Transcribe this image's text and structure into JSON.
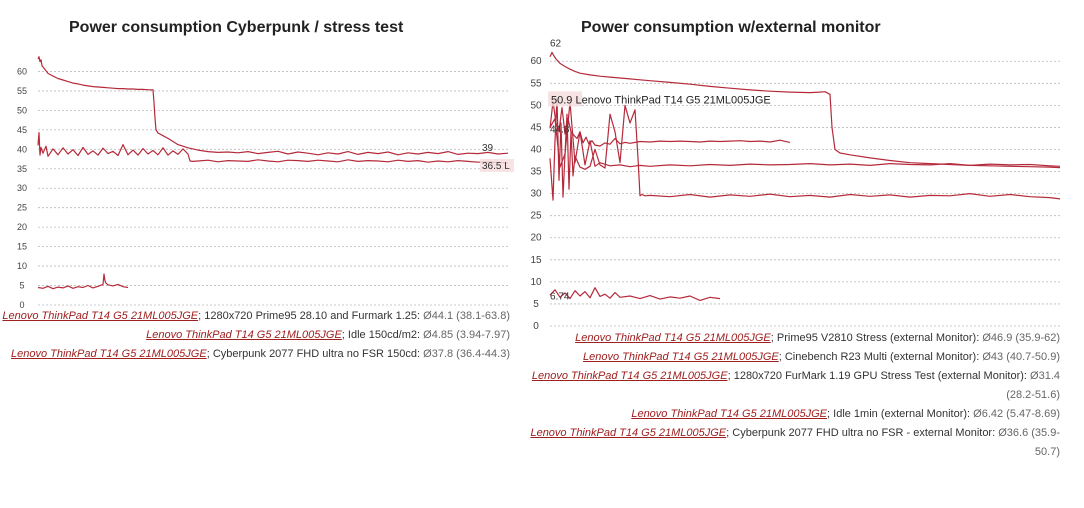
{
  "chart_data": [
    {
      "type": "line",
      "title": "Power consumption Cyberpunk / stress test",
      "xlabel": "",
      "ylabel": "",
      "ylim": [
        0,
        65
      ],
      "yticks": [
        0,
        5,
        10,
        15,
        20,
        25,
        30,
        35,
        40,
        45,
        50,
        55,
        60
      ],
      "grid": true,
      "legend_placement": "bottom",
      "end_labels": [
        "39",
        "36.5 L"
      ],
      "series": [
        {
          "name": "Lenovo ThinkPad T14 G5 21ML005JGE",
          "description": "1280x720 Prime95 28.10 and Furmark 1.25",
          "stat": "Ø44.1 (38.1-63.8)",
          "x": [
            0,
            1,
            2,
            3,
            4,
            6,
            8,
            10,
            15,
            20,
            25,
            30,
            35,
            40,
            45,
            50,
            55,
            60,
            65,
            70,
            75,
            80,
            85,
            90,
            95,
            100,
            105,
            110,
            115,
            116,
            117,
            118,
            120,
            125,
            130,
            135,
            140,
            150,
            160,
            170,
            180,
            190,
            200,
            210,
            220,
            230,
            240,
            250,
            260,
            270,
            280,
            290,
            300,
            310,
            320,
            330,
            340,
            350,
            360,
            370,
            380,
            390,
            400,
            410,
            420,
            430,
            440,
            450,
            460,
            470
          ],
          "values": [
            63.2,
            63.8,
            62.5,
            63.0,
            61.5,
            60.8,
            60.2,
            59.5,
            58.8,
            58.2,
            57.8,
            57.4,
            57.0,
            56.8,
            56.5,
            56.3,
            56.1,
            56.0,
            55.9,
            55.8,
            55.7,
            55.6,
            55.6,
            55.5,
            55.5,
            55.4,
            55.4,
            55.3,
            55.3,
            52.0,
            48.0,
            45.0,
            44.2,
            43.5,
            42.8,
            42.0,
            41.2,
            40.4,
            39.8,
            39.4,
            39.2,
            39.3,
            39.1,
            39.4,
            38.9,
            39.2,
            39.5,
            38.8,
            39.3,
            39.0,
            38.6,
            39.1,
            38.8,
            39.4,
            38.7,
            39.2,
            38.9,
            39.3,
            38.6,
            39.1,
            38.8,
            39.2,
            38.9,
            39.4,
            38.7,
            39.0,
            38.9,
            39.2,
            38.8,
            39.0
          ]
        },
        {
          "name": "Lenovo ThinkPad T14 G5 21ML005JGE",
          "description": "Idle 150cd/m2",
          "stat": "Ø4.85 (3.94-7.97)",
          "x": [
            0,
            5,
            10,
            15,
            20,
            25,
            30,
            35,
            40,
            45,
            50,
            55,
            60,
            65,
            66,
            67,
            68,
            70,
            75,
            80,
            85,
            90
          ],
          "values": [
            4.5,
            4.3,
            4.8,
            4.2,
            4.6,
            4.4,
            4.9,
            4.3,
            4.7,
            4.5,
            5.0,
            4.4,
            4.8,
            5.3,
            7.97,
            6.2,
            5.6,
            5.2,
            4.9,
            5.3,
            4.7,
            4.5
          ]
        },
        {
          "name": "Lenovo ThinkPad T14 G5 21ML005JGE",
          "description": "Cyberpunk 2077 FHD ultra no FSR 150cd",
          "stat": "Ø37.8 (36.4-44.3)",
          "x": [
            0,
            1,
            2,
            3,
            5,
            8,
            10,
            15,
            20,
            25,
            30,
            35,
            40,
            45,
            50,
            55,
            60,
            65,
            70,
            75,
            80,
            85,
            90,
            95,
            100,
            105,
            110,
            115,
            120,
            125,
            130,
            135,
            140,
            145,
            150,
            152,
            155,
            160,
            170,
            180,
            190,
            200,
            210,
            220,
            230,
            240,
            250,
            260,
            270,
            280,
            290,
            300,
            310,
            320,
            330,
            340,
            350,
            360,
            370,
            380,
            390,
            400,
            410,
            420,
            430,
            440,
            450,
            460,
            470
          ],
          "values": [
            41.0,
            44.3,
            38.5,
            40.5,
            39.0,
            40.8,
            38.2,
            40.1,
            38.6,
            40.4,
            38.8,
            39.9,
            38.4,
            40.5,
            38.7,
            39.6,
            38.5,
            40.3,
            38.9,
            39.5,
            38.4,
            41.2,
            38.6,
            39.8,
            38.5,
            40.2,
            38.8,
            39.7,
            38.6,
            40.4,
            38.5,
            39.6,
            38.7,
            40.1,
            38.8,
            37.0,
            36.9,
            37.0,
            37.2,
            36.8,
            37.1,
            37.0,
            36.9,
            37.3,
            37.0,
            36.8,
            37.2,
            37.1,
            36.9,
            37.2,
            37.0,
            36.8,
            37.3,
            36.9,
            37.1,
            37.0,
            36.8,
            37.2,
            36.9,
            37.1,
            36.7,
            37.0,
            36.8,
            37.1,
            36.9,
            36.7,
            36.8,
            36.6,
            36.5
          ]
        }
      ]
    },
    {
      "type": "line",
      "title": "Power consumption w/external monitor",
      "xlabel": "",
      "ylabel": "",
      "ylim": [
        0,
        63
      ],
      "yticks": [
        0,
        5,
        10,
        15,
        20,
        25,
        30,
        35,
        40,
        45,
        50,
        55,
        60
      ],
      "grid": true,
      "legend_placement": "bottom",
      "point_labels": [
        "62",
        "44.8",
        "6.74"
      ],
      "annotation": "50.9 Lenovo ThinkPad T14 G5 21ML005JGE",
      "series": [
        {
          "name": "Lenovo ThinkPad T14 G5 21ML005JGE",
          "description": "Prime95 V2810 Stress (external Monitor)",
          "stat": "Ø46.9 (35.9-62)",
          "x": [
            0,
            2,
            4,
            6,
            8,
            10,
            15,
            20,
            25,
            30,
            40,
            50,
            60,
            70,
            80,
            90,
            100,
            120,
            140,
            160,
            180,
            200,
            220,
            240,
            260,
            270,
            275,
            280,
            282,
            285,
            290,
            300,
            320,
            340,
            360,
            380,
            400,
            420,
            440,
            460,
            480,
            500,
            510
          ],
          "values": [
            61.0,
            62.0,
            61.2,
            60.5,
            60.0,
            59.5,
            58.8,
            58.2,
            57.7,
            57.3,
            56.9,
            56.6,
            56.4,
            56.2,
            56.0,
            55.8,
            55.6,
            55.2,
            54.8,
            54.3,
            53.9,
            53.5,
            53.2,
            53.0,
            52.9,
            53.0,
            53.1,
            52.5,
            45.0,
            40.0,
            39.2,
            38.8,
            38.1,
            37.5,
            37.0,
            36.8,
            36.6,
            36.4,
            36.3,
            36.2,
            36.1,
            36.0,
            35.9
          ]
        },
        {
          "name": "Lenovo ThinkPad T14 G5 21ML005JGE",
          "description": "Cinebench R23 Multi (external Monitor)",
          "stat": "Ø43 (40.7-50.9)",
          "x": [
            0,
            3,
            6,
            9,
            12,
            15,
            18,
            21,
            24,
            27,
            30,
            33,
            36,
            39,
            42,
            45,
            50,
            55,
            60,
            65,
            70,
            75,
            80,
            90,
            100,
            110,
            120,
            130,
            140,
            150,
            160,
            170,
            180,
            190,
            200,
            210,
            220,
            230,
            240
          ],
          "values": [
            44.8,
            50.9,
            46.0,
            44.2,
            49.5,
            43.5,
            47.0,
            44.0,
            43.2,
            42.5,
            44.0,
            41.5,
            42.8,
            41.2,
            42.0,
            41.0,
            40.8,
            41.5,
            41.2,
            42.5,
            41.3,
            41.6,
            41.4,
            41.8,
            41.7,
            41.9,
            41.8,
            41.9,
            41.8,
            41.7,
            41.9,
            41.8,
            41.9,
            42.0,
            41.8,
            41.9,
            41.7,
            42.1,
            41.6
          ]
        },
        {
          "name": "Lenovo ThinkPad T14 G5 21ML005JGE",
          "description": "1280x720 FurMark 1.19 GPU Stress Test (external Monitor)",
          "stat": "Ø31.4 (28.2-51.6)",
          "x": [
            0,
            3,
            5,
            7,
            9,
            11,
            13,
            15,
            17,
            19,
            21,
            23,
            25,
            30,
            35,
            40,
            45,
            50,
            55,
            60,
            65,
            70,
            75,
            80,
            85,
            88,
            90,
            92,
            95,
            100,
            120,
            140,
            160,
            180,
            200,
            220,
            240,
            260,
            280,
            300,
            320,
            340,
            360,
            380,
            400,
            420,
            440,
            460,
            480,
            500,
            510
          ],
          "values": [
            38.0,
            28.5,
            42.0,
            51.6,
            33.0,
            46.0,
            29.2,
            39.0,
            48.0,
            31.0,
            44.0,
            34.0,
            38.5,
            36.0,
            35.5,
            36.2,
            40.0,
            36.5,
            35.8,
            48.0,
            44.0,
            37.0,
            50.0,
            46.0,
            49.0,
            38.0,
            29.5,
            29.8,
            29.5,
            29.6,
            29.3,
            29.8,
            29.2,
            29.7,
            29.4,
            29.9,
            29.3,
            29.6,
            29.2,
            29.8,
            29.4,
            29.7,
            29.2,
            29.6,
            29.5,
            30.0,
            29.4,
            29.8,
            29.3,
            29.1,
            28.8
          ]
        },
        {
          "name": "Lenovo ThinkPad T14 G5 21ML005JGE",
          "description": "Idle 1min (external Monitor)",
          "stat": "Ø6.42 (5.47-8.69)",
          "x": [
            0,
            5,
            10,
            15,
            20,
            25,
            30,
            35,
            40,
            45,
            50,
            55,
            60,
            65,
            70,
            80,
            90,
            100,
            110,
            120,
            130,
            140,
            150,
            160,
            170
          ],
          "values": [
            7.0,
            8.2,
            6.5,
            7.5,
            6.2,
            8.0,
            6.8,
            7.8,
            6.4,
            8.69,
            6.7,
            7.2,
            6.3,
            7.6,
            6.5,
            6.8,
            6.2,
            6.9,
            6.1,
            6.6,
            6.3,
            6.8,
            5.8,
            6.5,
            6.2
          ]
        },
        {
          "name": "Lenovo ThinkPad T14 G5 21ML005JGE",
          "description": "Cyberpunk 2077 FHD ultra no FSR - external Monitor",
          "stat": "Ø36.6 (35.9-50.7)",
          "x": [
            0,
            5,
            10,
            15,
            20,
            25,
            30,
            35,
            40,
            45,
            50,
            60,
            70,
            80,
            90,
            100,
            120,
            140,
            160,
            180,
            200,
            220,
            240,
            260,
            280,
            300,
            320,
            340,
            360,
            380,
            400,
            420,
            440,
            460,
            480,
            500,
            510
          ],
          "values": [
            45.0,
            47.0,
            36.0,
            39.0,
            50.7,
            37.0,
            44.0,
            36.5,
            42.0,
            36.2,
            37.0,
            36.3,
            36.5,
            36.1,
            36.4,
            36.2,
            36.5,
            36.3,
            36.6,
            36.4,
            36.7,
            36.5,
            36.6,
            36.8,
            36.5,
            36.7,
            36.4,
            36.8,
            36.6,
            36.5,
            36.8,
            36.4,
            36.7,
            36.5,
            36.6,
            36.3,
            36.2
          ]
        }
      ]
    }
  ]
}
